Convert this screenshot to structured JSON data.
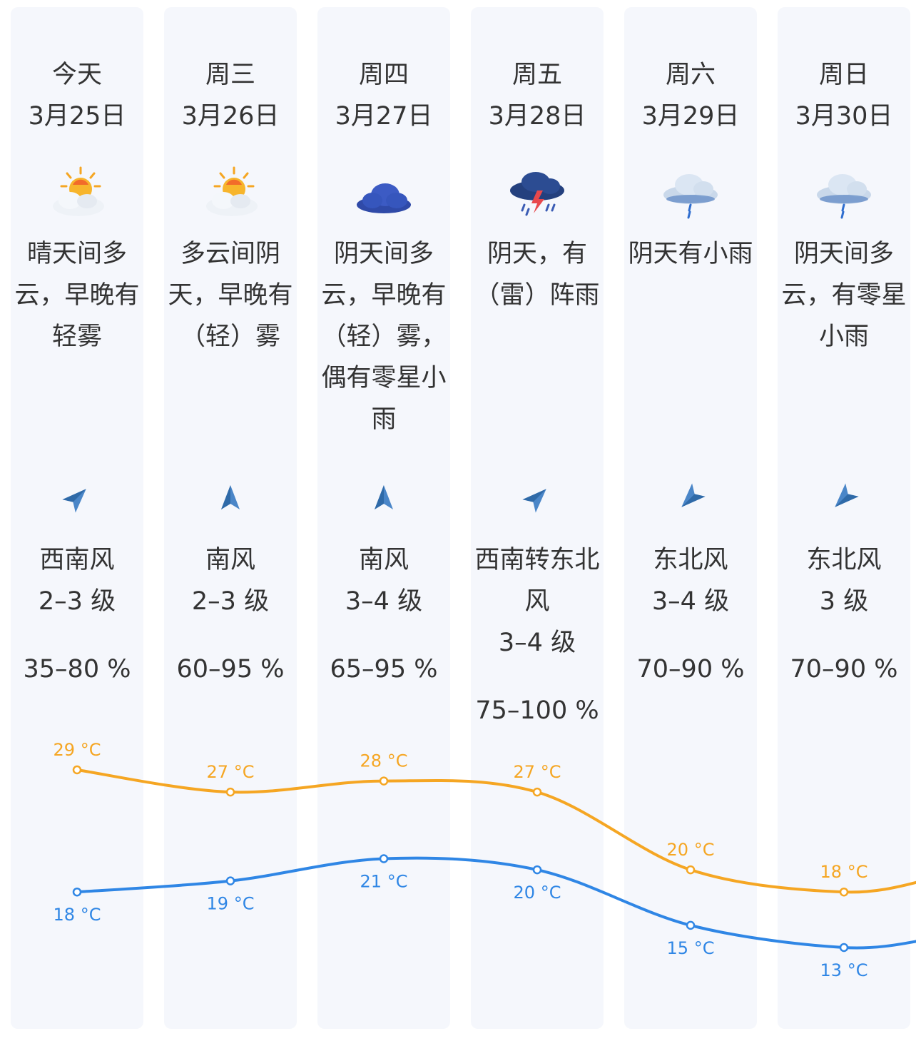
{
  "colors": {
    "high_line": "#f5a623",
    "low_line": "#2f86e5",
    "card_bg": "#f5f7fc",
    "wind_arrow": "#4a86c8"
  },
  "days": [
    {
      "day": "今天",
      "date": "3月25日",
      "icon": "sun-cloud-icon",
      "desc": [
        "晴天间多",
        "云，早晚有",
        "轻雾"
      ],
      "wind_icon": "wind-arrow-southwest-icon",
      "wind": [
        "西南风",
        "2–3 级"
      ],
      "humidity": "35–80 %"
    },
    {
      "day": "周三",
      "date": "3月26日",
      "icon": "sun-cloud-icon",
      "desc": [
        "多云间阴",
        "天，早晚有",
        "（轻）雾"
      ],
      "wind_icon": "wind-arrow-south-icon",
      "wind": [
        "南风",
        "2–3 级"
      ],
      "humidity": "60–95 %"
    },
    {
      "day": "周四",
      "date": "3月27日",
      "icon": "cloud-icon",
      "desc": [
        "阴天间多",
        "云，早晚有",
        "（轻）雾，",
        "偶有零星小",
        "雨"
      ],
      "wind_icon": "wind-arrow-south-icon",
      "wind": [
        "南风",
        "3–4 级"
      ],
      "humidity": "65–95 %"
    },
    {
      "day": "周五",
      "date": "3月28日",
      "icon": "thunderstorm-icon",
      "desc": [
        "阴天，有",
        "（雷）阵雨"
      ],
      "wind_icon": "wind-arrow-southwest-icon",
      "wind": [
        "西南转东北",
        "风",
        "3–4 级"
      ],
      "humidity": "75–100 %"
    },
    {
      "day": "周六",
      "date": "3月29日",
      "icon": "light-rain-icon",
      "desc": [
        "阴天有小雨"
      ],
      "wind_icon": "wind-arrow-northeast-icon",
      "wind": [
        "东北风",
        "3–4 级"
      ],
      "humidity": "70–90 %"
    },
    {
      "day": "周日",
      "date": "3月30日",
      "icon": "light-rain-icon",
      "desc": [
        "阴天间多",
        "云，有零星",
        "小雨"
      ],
      "wind_icon": "wind-arrow-northeast-icon",
      "wind": [
        "东北风",
        "3 级"
      ],
      "humidity": "70–90 %"
    }
  ],
  "chart_data": {
    "type": "line",
    "categories": [
      "3月25日",
      "3月26日",
      "3月27日",
      "3月28日",
      "3月29日",
      "3月30日"
    ],
    "unit": "°C",
    "series": [
      {
        "values": [
          29,
          27,
          28,
          27,
          20,
          18
        ]
      },
      {
        "values": [
          18,
          19,
          21,
          20,
          15,
          13
        ]
      }
    ],
    "ylim": [
      13,
      29
    ],
    "grid": false,
    "labels": {
      "high": [
        "29 °C",
        "27 °C",
        "28 °C",
        "27 °C",
        "20 °C",
        "18 °C"
      ],
      "low": [
        "18 °C",
        "19 °C",
        "21 °C",
        "20 °C",
        "15 °C",
        "13 °C"
      ]
    }
  }
}
